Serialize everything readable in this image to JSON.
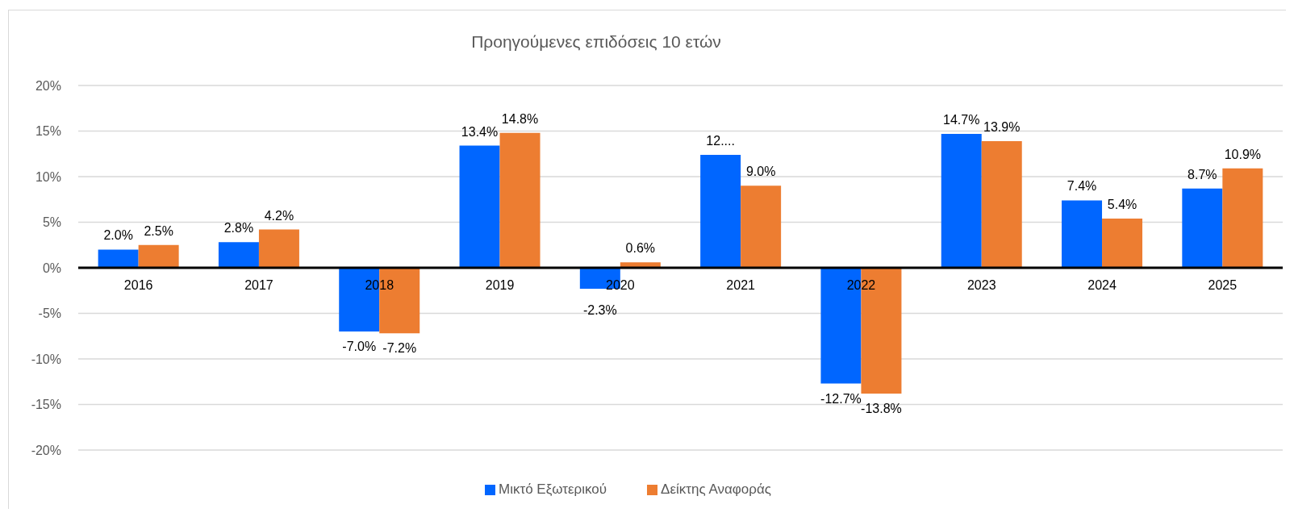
{
  "chart_data": {
    "type": "bar",
    "title": "Προηγούμενες επιδόσεις 10 ετών",
    "categories": [
      "2016",
      "2017",
      "2018",
      "2019",
      "2020",
      "2021",
      "2022",
      "2023",
      "2024",
      "2025"
    ],
    "series": [
      {
        "name": "Μικτό Εξωτερικού",
        "color": "#0066ff",
        "values": [
          2.0,
          2.8,
          -7.0,
          13.4,
          -2.3,
          12.4,
          -12.7,
          14.7,
          7.4,
          8.7
        ],
        "value_labels": [
          "2.0%",
          "2.8%",
          "-7.0%",
          "13.4%",
          "-2.3%",
          "12....",
          "-12.7%",
          "14.7%",
          "7.4%",
          "8.7%"
        ]
      },
      {
        "name": "Δείκτης Αναφοράς",
        "color": "#ed7d31",
        "values": [
          2.5,
          4.2,
          -7.2,
          14.8,
          0.6,
          9.0,
          -13.8,
          13.9,
          5.4,
          10.9
        ],
        "value_labels": [
          "2.5%",
          "4.2%",
          "-7.2%",
          "14.8%",
          "0.6%",
          "9.0%",
          "-13.8%",
          "13.9%",
          "5.4%",
          "10.9%"
        ]
      }
    ],
    "ylim": [
      -20,
      20
    ],
    "yticks": [
      {
        "value": -20,
        "label": "-20%"
      },
      {
        "value": -15,
        "label": "-15%"
      },
      {
        "value": -10,
        "label": "-10%"
      },
      {
        "value": -5,
        "label": "-5%"
      },
      {
        "value": 0,
        "label": "0%"
      },
      {
        "value": 5,
        "label": "5%"
      },
      {
        "value": 10,
        "label": "10%"
      },
      {
        "value": 15,
        "label": "15%"
      },
      {
        "value": 20,
        "label": "20%"
      }
    ],
    "grid": "y",
    "legend": "bottom"
  }
}
